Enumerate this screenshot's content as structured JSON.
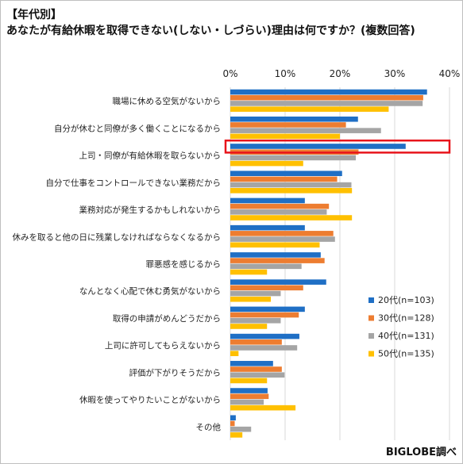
{
  "header": {
    "line1": "【年代別】",
    "line2": "あなたが有給休暇を取得できない(しない・しづらい)理由は何ですか？(複数回答)"
  },
  "source": "BIGLOBE調べ",
  "colors": {
    "20s": "#1f6fc5",
    "30s": "#ed7d31",
    "40s": "#a5a5a5",
    "50s": "#ffc000",
    "highlight": "#e8141b",
    "grid": "#d9d9d9"
  },
  "chart_data": {
    "type": "bar",
    "orientation": "horizontal",
    "title": "",
    "xlabel": "",
    "ylabel": "",
    "xlim": [
      0,
      40
    ],
    "x_ticks": [
      "0%",
      "10%",
      "20%",
      "30%",
      "40%"
    ],
    "grid": true,
    "legend_position": "right",
    "categories": [
      "職場に休める空気がないから",
      "自分が休むと同僚が多く働くことになるから",
      "上司・同僚が有給休暇を取らないから",
      "自分で仕事をコントロールできない業務だから",
      "業務対応が発生するかもしれないから",
      "休みを取ると他の日に残業しなければならなくなるから",
      "罪悪感を感じるから",
      "なんとなく心配で休む勇気がないから",
      "取得の申請がめんどうだから",
      "上司に許可してもらえないから",
      "評価が下がりそうだから",
      "休暇を使ってやりたいことがないから",
      "その他"
    ],
    "series": [
      {
        "name": "20代(n=103)",
        "values": [
          35.9,
          23.3,
          32.0,
          20.4,
          13.6,
          13.6,
          16.5,
          17.5,
          13.6,
          12.6,
          7.8,
          6.8,
          1.0
        ]
      },
      {
        "name": "30代(n=128)",
        "values": [
          35.2,
          21.1,
          23.4,
          19.5,
          18.0,
          18.8,
          17.2,
          13.3,
          12.5,
          9.4,
          9.4,
          7.0,
          0.8
        ]
      },
      {
        "name": "40代(n=131)",
        "values": [
          35.1,
          27.5,
          22.9,
          22.1,
          17.6,
          19.1,
          13.0,
          9.2,
          9.2,
          12.2,
          9.9,
          6.1,
          3.8
        ]
      },
      {
        "name": "50代(n=135)",
        "values": [
          28.9,
          20.0,
          13.3,
          22.2,
          22.2,
          16.3,
          6.7,
          7.4,
          6.7,
          1.5,
          6.7,
          11.9,
          2.2
        ]
      }
    ],
    "annotations": [
      {
        "category_index": 2,
        "series_index": 0,
        "text": "32.0%"
      }
    ]
  }
}
